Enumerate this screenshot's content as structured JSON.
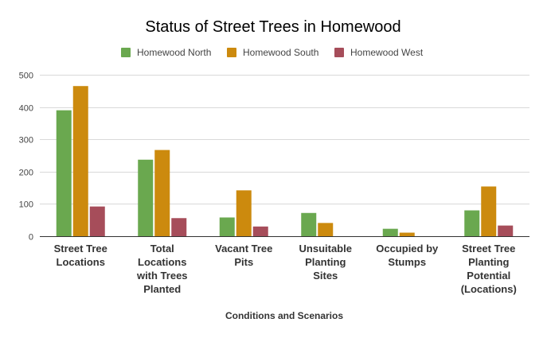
{
  "chart_data": {
    "type": "bar",
    "title": "Status of Street Trees in Homewood",
    "xlabel": "Conditions and Scenarios",
    "ylabel": "",
    "ylim": [
      0,
      500
    ],
    "yticks": [
      0,
      100,
      200,
      300,
      400,
      500
    ],
    "grid": true,
    "legend_position": "top",
    "categories": [
      [
        "Street Tree",
        "Locations"
      ],
      [
        "Total",
        "Locations",
        "with Trees",
        "Planted"
      ],
      [
        "Vacant Tree",
        "Pits"
      ],
      [
        "Unsuitable",
        "Planting",
        "Sites"
      ],
      [
        "Occupied by",
        "Stumps"
      ],
      [
        "Street Tree",
        "Planting",
        "Potential",
        "(Locations)"
      ]
    ],
    "series": [
      {
        "name": "Homewood North",
        "color": "#6aa84f",
        "values": [
          390,
          237,
          58,
          72,
          23,
          80
        ]
      },
      {
        "name": "Homewood South",
        "color": "#cc8a0e",
        "values": [
          465,
          267,
          142,
          41,
          11,
          154
        ]
      },
      {
        "name": "Homewood West",
        "color": "#a64d5a",
        "values": [
          92,
          56,
          30,
          0,
          0,
          33
        ]
      }
    ]
  }
}
